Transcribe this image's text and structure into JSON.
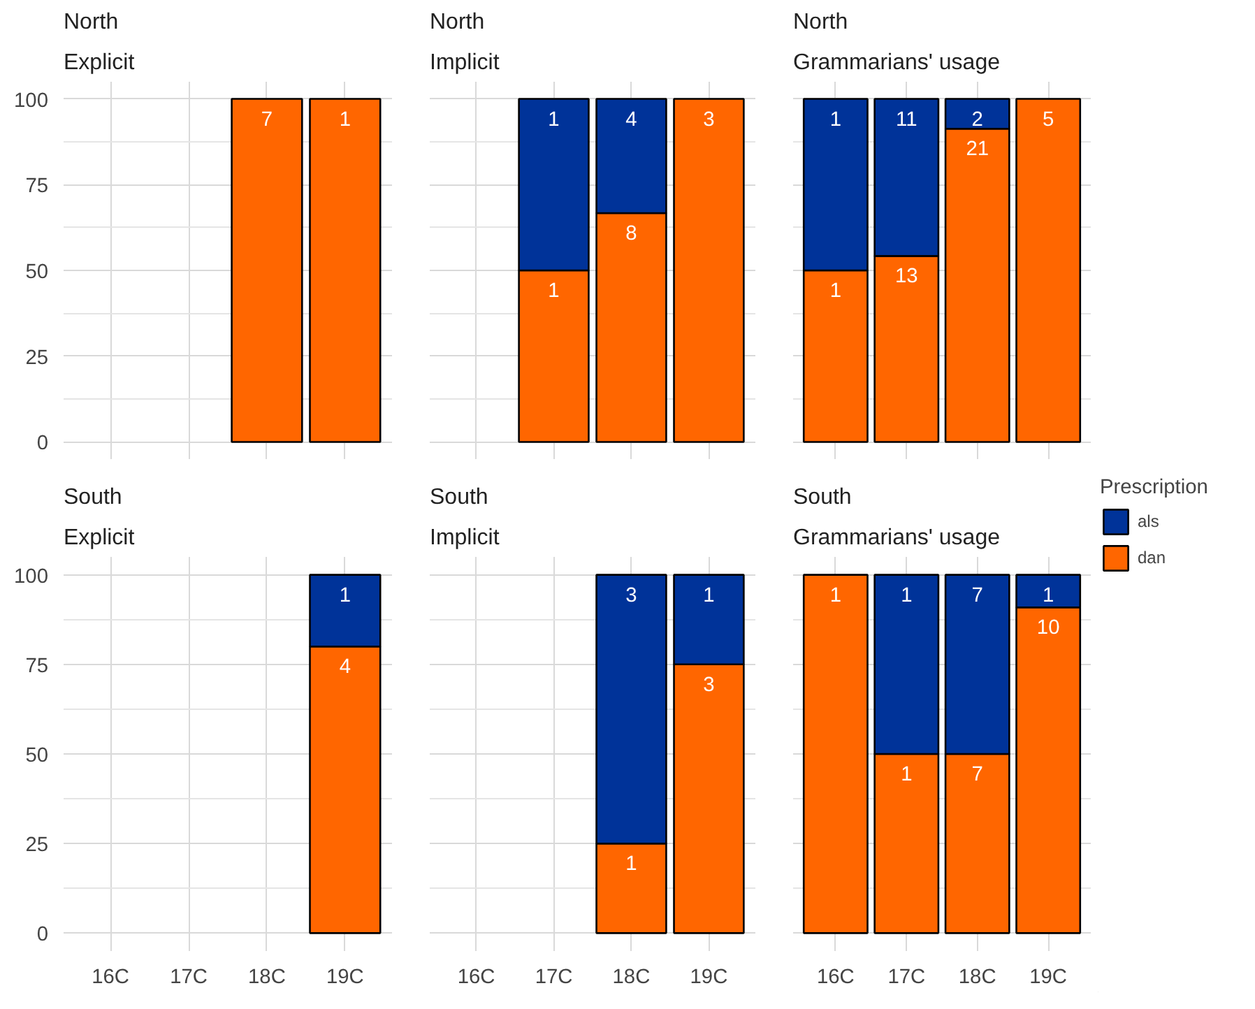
{
  "chart_data": [
    {
      "type": "bar",
      "title": "North",
      "subtitle": "Explicit",
      "stacked": true,
      "categories": [
        "16C",
        "17C",
        "18C",
        "19C"
      ],
      "ylim": [
        -5,
        105
      ],
      "yticks": [
        0,
        25,
        50,
        75,
        100
      ],
      "grid": true,
      "tick_labels": "y",
      "series": [
        {
          "color": "#ff6600",
          "values": [
            null,
            null,
            100,
            100
          ]
        }
      ],
      "annotations": [
        {
          "text": "7",
          "x": "18C",
          "y": 100
        },
        {
          "text": "1",
          "x": "19C",
          "y": 100
        }
      ]
    },
    {
      "type": "bar",
      "title": "North",
      "subtitle": "Implicit",
      "stacked": true,
      "categories": [
        "16C",
        "17C",
        "18C",
        "19C"
      ],
      "ylim": [
        -5,
        105
      ],
      "yticks": [
        0,
        25,
        50,
        75,
        100
      ],
      "grid": true,
      "tick_labels": false,
      "series": [
        {
          "color": "#ff6600",
          "values": [
            null,
            50,
            66.7,
            100
          ]
        },
        {
          "color": "#003399",
          "values": [
            null,
            50,
            33.3,
            null
          ]
        }
      ],
      "annotations": [
        {
          "text": "1",
          "x": "17C",
          "y": 50
        },
        {
          "text": "8",
          "x": "18C",
          "y": 66.7
        },
        {
          "text": "3",
          "x": "19C",
          "y": 100
        },
        {
          "text": "1",
          "x": "17C",
          "y": 100
        },
        {
          "text": "4",
          "x": "18C",
          "y": 100
        }
      ]
    },
    {
      "type": "bar",
      "title": "North",
      "subtitle": "Grammarians' usage",
      "stacked": true,
      "categories": [
        "16C",
        "17C",
        "18C",
        "19C"
      ],
      "ylim": [
        -5,
        105
      ],
      "yticks": [
        0,
        25,
        50,
        75,
        100
      ],
      "grid": true,
      "tick_labels": false,
      "series": [
        {
          "color": "#ff6600",
          "values": [
            50,
            54.2,
            91.3,
            100
          ]
        },
        {
          "color": "#003399",
          "values": [
            50,
            45.8,
            8.7,
            null
          ]
        }
      ],
      "annotations": [
        {
          "text": "1",
          "x": "16C",
          "y": 50
        },
        {
          "text": "13",
          "x": "17C",
          "y": 54.2
        },
        {
          "text": "21",
          "x": "18C",
          "y": 91.3
        },
        {
          "text": "5",
          "x": "19C",
          "y": 100
        },
        {
          "text": "1",
          "x": "16C",
          "y": 100
        },
        {
          "text": "11",
          "x": "17C",
          "y": 100
        },
        {
          "text": "2",
          "x": "18C",
          "y": 100
        }
      ]
    },
    {
      "type": "bar",
      "title": "South",
      "subtitle": "Explicit",
      "stacked": true,
      "categories": [
        "16C",
        "17C",
        "18C",
        "19C"
      ],
      "ylim": [
        -5,
        105
      ],
      "yticks": [
        0,
        25,
        50,
        75,
        100
      ],
      "grid": true,
      "series": [
        {
          "color": "#ff6600",
          "values": [
            null,
            null,
            null,
            80
          ]
        },
        {
          "color": "#003399",
          "values": [
            null,
            null,
            null,
            20
          ]
        }
      ],
      "annotations": [
        {
          "text": "4",
          "x": "19C",
          "y": 80
        },
        {
          "text": "1",
          "x": "19C",
          "y": 100
        }
      ]
    },
    {
      "type": "bar",
      "title": "South",
      "subtitle": "Implicit",
      "stacked": true,
      "categories": [
        "16C",
        "17C",
        "18C",
        "19C"
      ],
      "ylim": [
        -5,
        105
      ],
      "yticks": [
        0,
        25,
        50,
        75,
        100
      ],
      "grid": true,
      "tick_labels": "x",
      "series": [
        {
          "color": "#ff6600",
          "values": [
            null,
            null,
            25,
            75
          ]
        },
        {
          "color": "#003399",
          "values": [
            null,
            null,
            75,
            25
          ]
        }
      ],
      "annotations": [
        {
          "text": "1",
          "x": "18C",
          "y": 25
        },
        {
          "text": "3",
          "x": "19C",
          "y": 75
        },
        {
          "text": "3",
          "x": "18C",
          "y": 100
        },
        {
          "text": "1",
          "x": "19C",
          "y": 100
        }
      ]
    },
    {
      "type": "bar",
      "title": "South",
      "subtitle": "Grammarians' usage",
      "stacked": true,
      "categories": [
        "16C",
        "17C",
        "18C",
        "19C"
      ],
      "ylim": [
        -5,
        105
      ],
      "yticks": [
        0,
        25,
        50,
        75,
        100
      ],
      "grid": true,
      "tick_labels": "x",
      "legend": "right",
      "legend_title": "Prescription",
      "series": [
        {
          "name": "dan",
          "color": "#ff6600",
          "values": [
            100,
            50,
            50,
            90.9
          ]
        },
        {
          "name": "als",
          "color": "#003399",
          "values": [
            null,
            50,
            50,
            9.1
          ]
        }
      ],
      "annotations": [
        {
          "text": "1",
          "x": "16C",
          "y": 100
        },
        {
          "text": "1",
          "x": "17C",
          "y": 50
        },
        {
          "text": "7",
          "x": "18C",
          "y": 50
        },
        {
          "text": "10",
          "x": "19C",
          "y": 90.9
        },
        {
          "text": "1",
          "x": "17C",
          "y": 100
        },
        {
          "text": "7",
          "x": "18C",
          "y": 100
        },
        {
          "text": "1",
          "x": "19C",
          "y": 100
        }
      ]
    }
  ]
}
